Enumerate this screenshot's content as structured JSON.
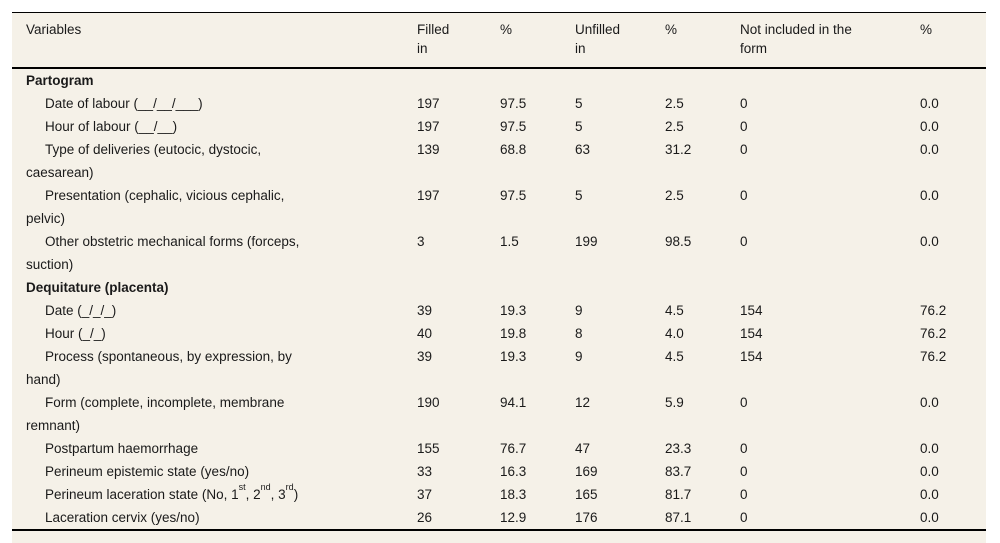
{
  "table": {
    "columns": [
      {
        "label": "Variables"
      },
      {
        "label": "Filled\nin"
      },
      {
        "label": "%"
      },
      {
        "label": "Unfilled\nin"
      },
      {
        "label": "%"
      },
      {
        "label": "Not included in the\nform"
      },
      {
        "label": "%"
      }
    ],
    "rows": [
      {
        "type": "section",
        "label": "Partogram",
        "values": [
          "",
          "",
          "",
          "",
          "",
          ""
        ]
      },
      {
        "type": "item",
        "label": "Date of labour (__/__/___)",
        "values": [
          "197",
          "97.5",
          "5",
          "2.5",
          "0",
          "0.0"
        ]
      },
      {
        "type": "item",
        "label": "Hour of labour (__/__)",
        "values": [
          "197",
          "97.5",
          "5",
          "2.5",
          "0",
          "0.0"
        ]
      },
      {
        "type": "item",
        "label": "Type of deliveries (eutocic, dystocic,\ncaesarean)",
        "values": [
          "139",
          "68.8",
          "63",
          "31.2",
          "0",
          "0.0"
        ]
      },
      {
        "type": "item",
        "label": "Presentation (cephalic, vicious cephalic,\npelvic)",
        "values": [
          "197",
          "97.5",
          "5",
          "2.5",
          "0",
          "0.0"
        ]
      },
      {
        "type": "item",
        "label": "Other obstetric mechanical forms (forceps,\nsuction)",
        "values": [
          "3",
          "1.5",
          "199",
          "98.5",
          "0",
          "0.0"
        ]
      },
      {
        "type": "section",
        "label": "Dequitature (placenta)",
        "values": [
          "",
          "",
          "",
          "",
          "",
          ""
        ]
      },
      {
        "type": "item",
        "label": "Date (_/_/_)",
        "values": [
          "39",
          "19.3",
          "9",
          "4.5",
          "154",
          "76.2"
        ]
      },
      {
        "type": "item",
        "label": "Hour (_/_)",
        "values": [
          "40",
          "19.8",
          "8",
          "4.0",
          "154",
          "76.2"
        ]
      },
      {
        "type": "item",
        "label": "Process (spontaneous, by expression, by\nhand)",
        "values": [
          "39",
          "19.3",
          "9",
          "4.5",
          "154",
          "76.2"
        ]
      },
      {
        "type": "item",
        "label": "Form (complete, incomplete, membrane\nremnant)",
        "values": [
          "190",
          "94.1",
          "12",
          "5.9",
          "0",
          "0.0"
        ]
      },
      {
        "type": "item",
        "label": "Postpartum haemorrhage",
        "values": [
          "155",
          "76.7",
          "47",
          "23.3",
          "0",
          "0.0"
        ]
      },
      {
        "type": "item",
        "label": "Perineum epistemic state (yes/no)",
        "values": [
          "33",
          "16.3",
          "169",
          "83.7",
          "0",
          "0.0"
        ]
      },
      {
        "type": "item",
        "label": "Perineum laceration state (No, 1^st^, 2^nd^, 3^rd^)",
        "values": [
          "37",
          "18.3",
          "165",
          "81.7",
          "0",
          "0.0"
        ]
      },
      {
        "type": "item",
        "label": "Laceration cervix (yes/no)",
        "values": [
          "26",
          "12.9",
          "176",
          "87.1",
          "0",
          "0.0"
        ]
      }
    ]
  },
  "colors": {
    "table_background": "#f5f1e8",
    "rule": "#000000",
    "text": "#1a1a1a"
  }
}
